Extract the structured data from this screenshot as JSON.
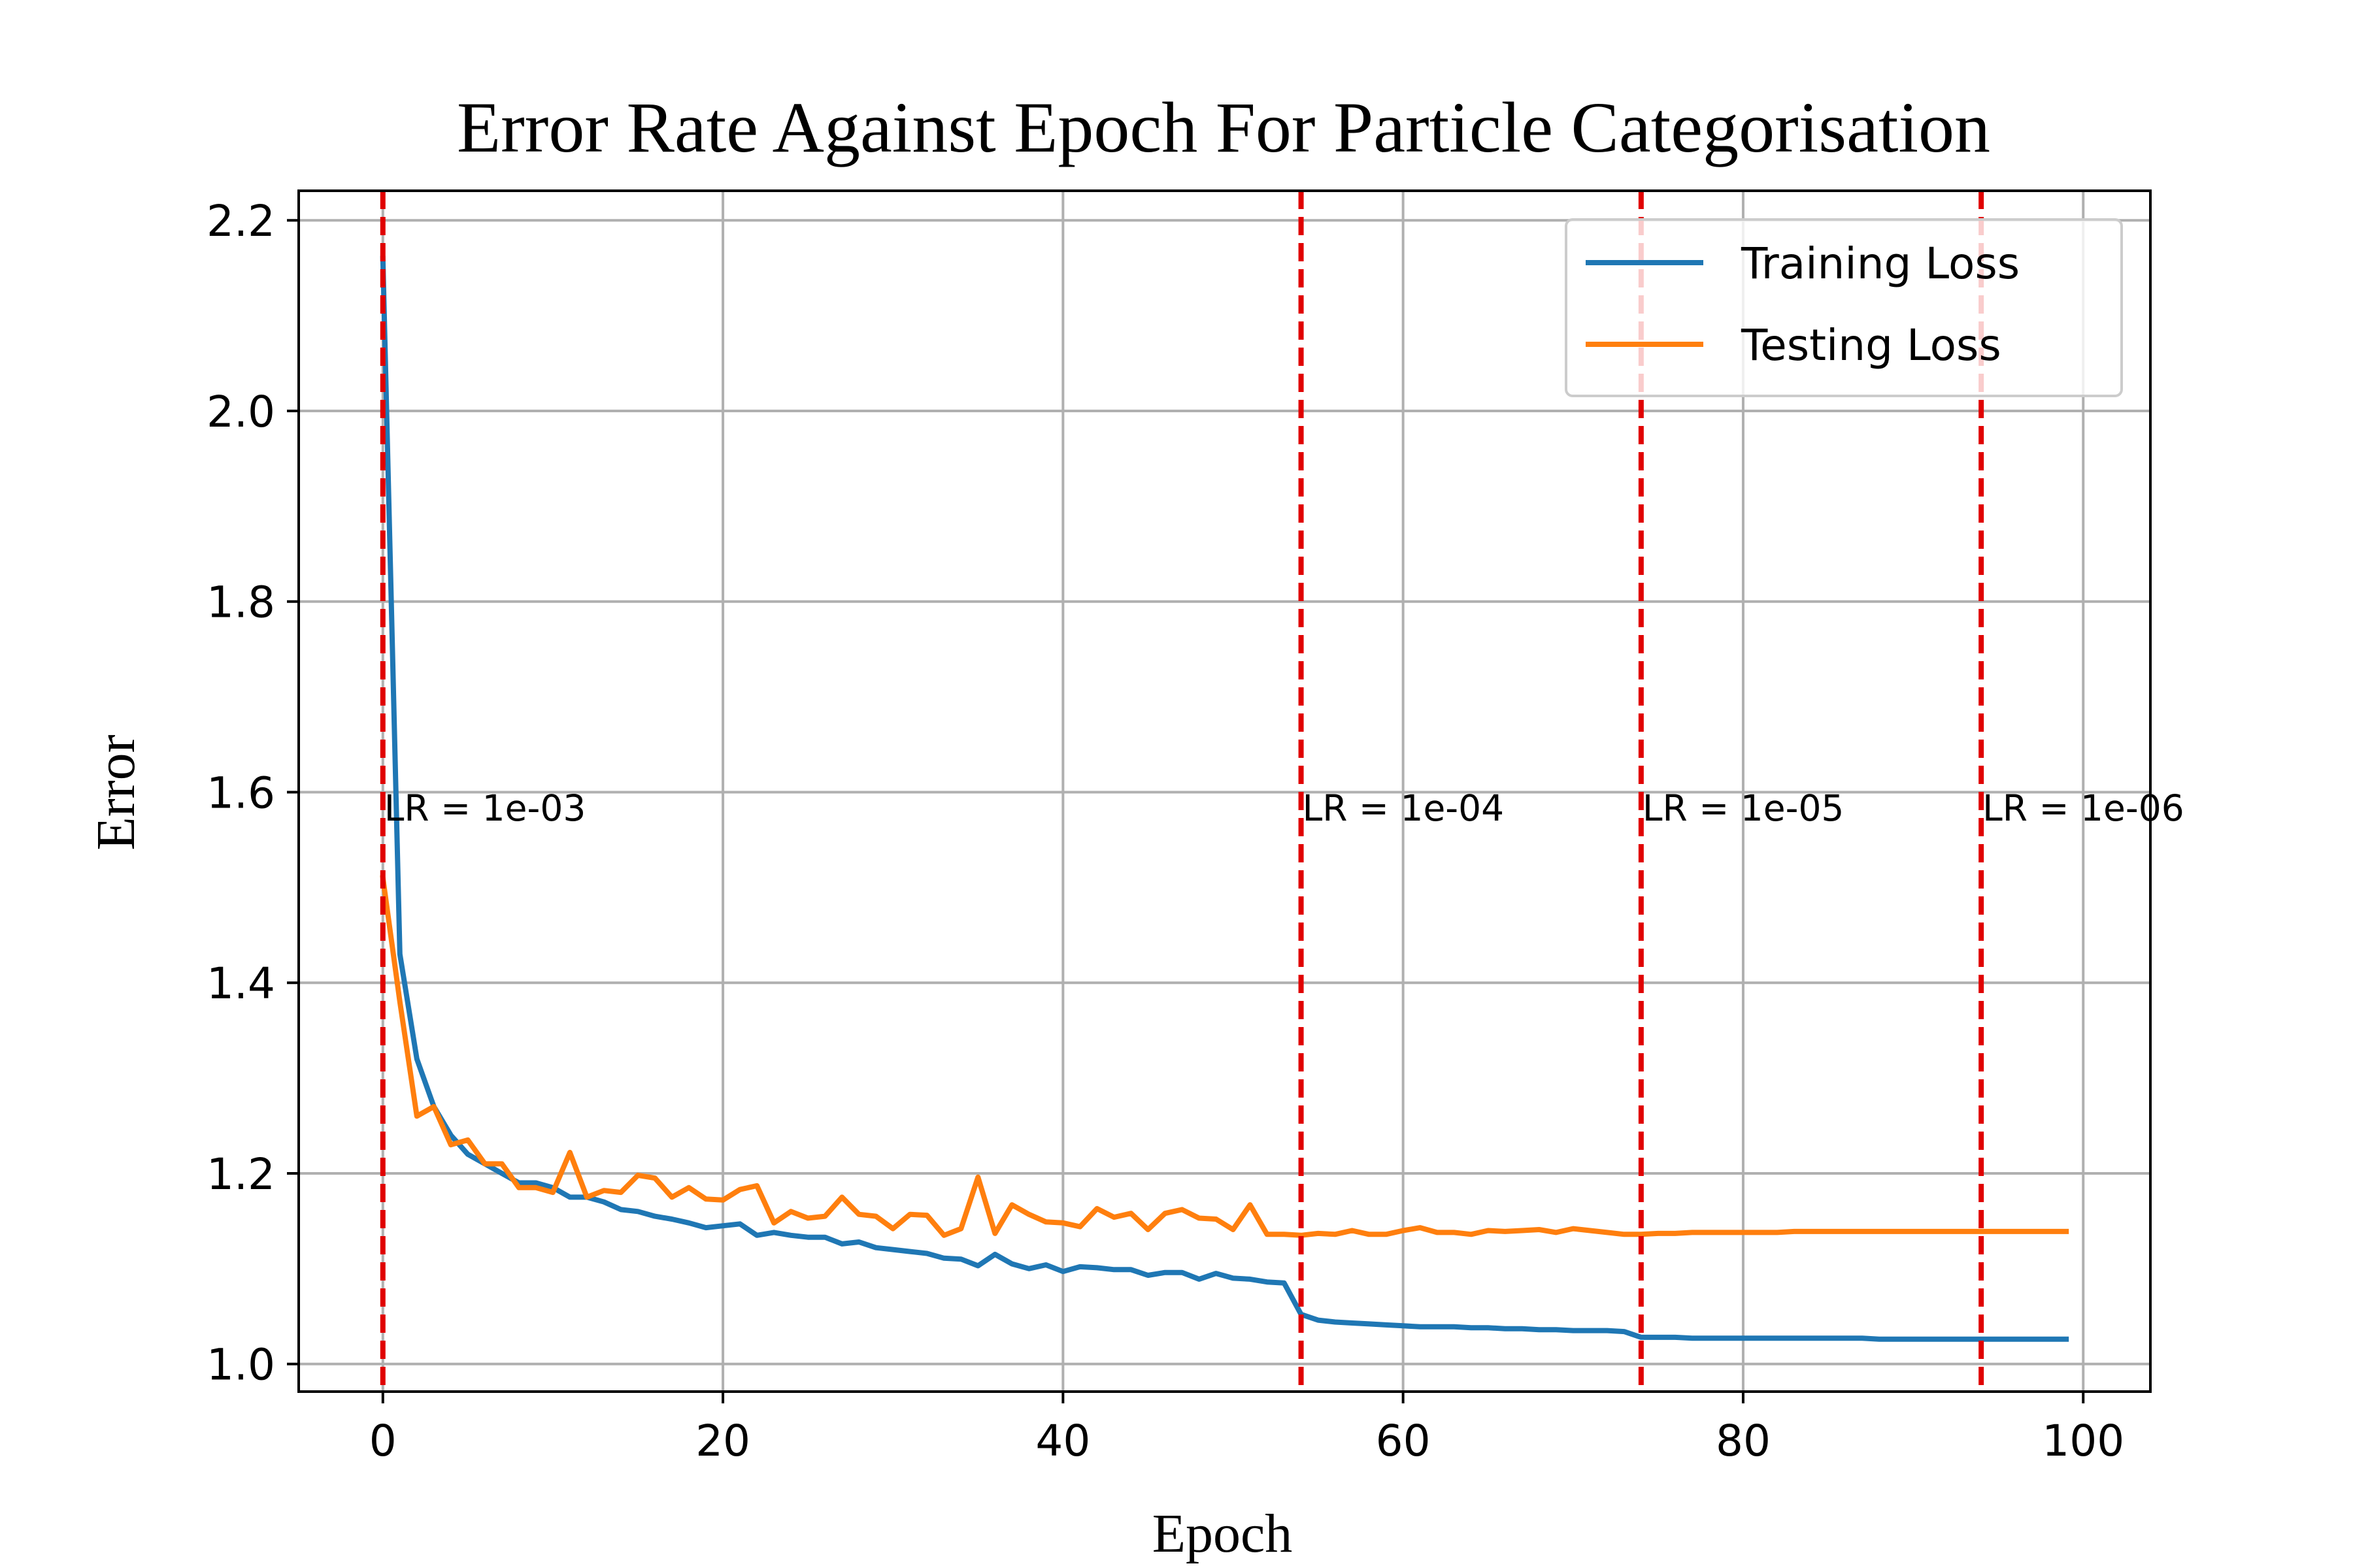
{
  "chart_data": {
    "type": "line",
    "title": "Error Rate Against Epoch For Particle Categorisation",
    "xlabel": "Epoch",
    "ylabel": "Error",
    "xlim": [
      -4.95,
      103.95
    ],
    "ylim": [
      0.971,
      2.231
    ],
    "x_ticks": [
      0,
      20,
      40,
      60,
      80,
      100
    ],
    "y_ticks": [
      1.0,
      1.2,
      1.4,
      1.6,
      1.8,
      2.0,
      2.2
    ],
    "x_tick_labels": [
      "0",
      "20",
      "40",
      "60",
      "80",
      "100"
    ],
    "y_tick_labels": [
      "1.0",
      "1.2",
      "1.4",
      "1.6",
      "1.8",
      "2.0",
      "2.2"
    ],
    "grid": true,
    "legend_position": "top-right",
    "colors": {
      "training": "#1f77b4",
      "testing": "#ff7f0e",
      "lr_lines": "#e00000"
    },
    "series": [
      {
        "name": "Training Loss",
        "x": [
          0,
          1,
          2,
          3,
          4,
          5,
          6,
          7,
          8,
          9,
          10,
          11,
          12,
          13,
          14,
          15,
          16,
          17,
          18,
          19,
          20,
          21,
          22,
          23,
          24,
          25,
          26,
          27,
          28,
          29,
          30,
          31,
          32,
          33,
          34,
          35,
          36,
          37,
          38,
          39,
          40,
          41,
          42,
          43,
          44,
          45,
          46,
          47,
          48,
          49,
          50,
          51,
          52,
          53,
          54,
          55,
          56,
          57,
          58,
          59,
          60,
          61,
          62,
          63,
          64,
          65,
          66,
          67,
          68,
          69,
          70,
          71,
          72,
          73,
          74,
          75,
          76,
          77,
          78,
          79,
          80,
          81,
          82,
          83,
          84,
          85,
          86,
          87,
          88,
          89,
          90,
          91,
          92,
          93,
          94,
          95,
          96,
          97,
          98,
          99
        ],
        "values": [
          2.16,
          1.43,
          1.32,
          1.27,
          1.24,
          1.22,
          1.21,
          1.2,
          1.19,
          1.19,
          1.185,
          1.175,
          1.175,
          1.17,
          1.162,
          1.16,
          1.155,
          1.152,
          1.148,
          1.143,
          1.145,
          1.147,
          1.135,
          1.138,
          1.135,
          1.133,
          1.133,
          1.126,
          1.128,
          1.122,
          1.12,
          1.118,
          1.116,
          1.111,
          1.11,
          1.103,
          1.115,
          1.105,
          1.1,
          1.104,
          1.097,
          1.102,
          1.101,
          1.099,
          1.099,
          1.093,
          1.096,
          1.096,
          1.089,
          1.095,
          1.09,
          1.089,
          1.086,
          1.085,
          1.052,
          1.046,
          1.044,
          1.043,
          1.042,
          1.041,
          1.04,
          1.039,
          1.039,
          1.039,
          1.038,
          1.038,
          1.037,
          1.037,
          1.036,
          1.036,
          1.035,
          1.035,
          1.035,
          1.034,
          1.028,
          1.028,
          1.028,
          1.027,
          1.027,
          1.027,
          1.027,
          1.027,
          1.027,
          1.027,
          1.027,
          1.027,
          1.027,
          1.027,
          1.026,
          1.026,
          1.026,
          1.026,
          1.026,
          1.026,
          1.026,
          1.026,
          1.026,
          1.026,
          1.026,
          1.026
        ]
      },
      {
        "name": "Testing Loss",
        "x": [
          0,
          1,
          2,
          3,
          4,
          5,
          6,
          7,
          8,
          9,
          10,
          11,
          12,
          13,
          14,
          15,
          16,
          17,
          18,
          19,
          20,
          21,
          22,
          23,
          24,
          25,
          26,
          27,
          28,
          29,
          30,
          31,
          32,
          33,
          34,
          35,
          36,
          37,
          38,
          39,
          40,
          41,
          42,
          43,
          44,
          45,
          46,
          47,
          48,
          49,
          50,
          51,
          52,
          53,
          54,
          55,
          56,
          57,
          58,
          59,
          60,
          61,
          62,
          63,
          64,
          65,
          66,
          67,
          68,
          69,
          70,
          71,
          72,
          73,
          74,
          75,
          76,
          77,
          78,
          79,
          80,
          81,
          82,
          83,
          84,
          85,
          86,
          87,
          88,
          89,
          90,
          91,
          92,
          93,
          94,
          95,
          96,
          97,
          98,
          99
        ],
        "values": [
          1.51,
          1.38,
          1.26,
          1.27,
          1.23,
          1.235,
          1.21,
          1.21,
          1.185,
          1.185,
          1.18,
          1.222,
          1.175,
          1.182,
          1.18,
          1.198,
          1.195,
          1.175,
          1.185,
          1.173,
          1.172,
          1.183,
          1.187,
          1.148,
          1.16,
          1.153,
          1.155,
          1.175,
          1.157,
          1.155,
          1.142,
          1.157,
          1.156,
          1.135,
          1.142,
          1.196,
          1.137,
          1.167,
          1.157,
          1.149,
          1.148,
          1.144,
          1.163,
          1.154,
          1.158,
          1.141,
          1.158,
          1.162,
          1.153,
          1.152,
          1.141,
          1.167,
          1.136,
          1.136,
          1.135,
          1.137,
          1.136,
          1.14,
          1.136,
          1.136,
          1.14,
          1.143,
          1.138,
          1.138,
          1.136,
          1.14,
          1.139,
          1.14,
          1.141,
          1.138,
          1.142,
          1.14,
          1.138,
          1.136,
          1.136,
          1.137,
          1.137,
          1.138,
          1.138,
          1.138,
          1.138,
          1.138,
          1.138,
          1.139,
          1.139,
          1.139,
          1.139,
          1.139,
          1.139,
          1.139,
          1.139,
          1.139,
          1.139,
          1.139,
          1.139,
          1.139,
          1.139,
          1.139,
          1.139,
          1.139
        ]
      }
    ],
    "lr_changes": [
      {
        "epoch": 0,
        "label": "LR = 1e-03"
      },
      {
        "epoch": 54,
        "label": "LR = 1e-04"
      },
      {
        "epoch": 74,
        "label": "LR = 1e-05"
      },
      {
        "epoch": 94,
        "label": "LR = 1e-06"
      }
    ],
    "lr_label_y": 1.57
  }
}
